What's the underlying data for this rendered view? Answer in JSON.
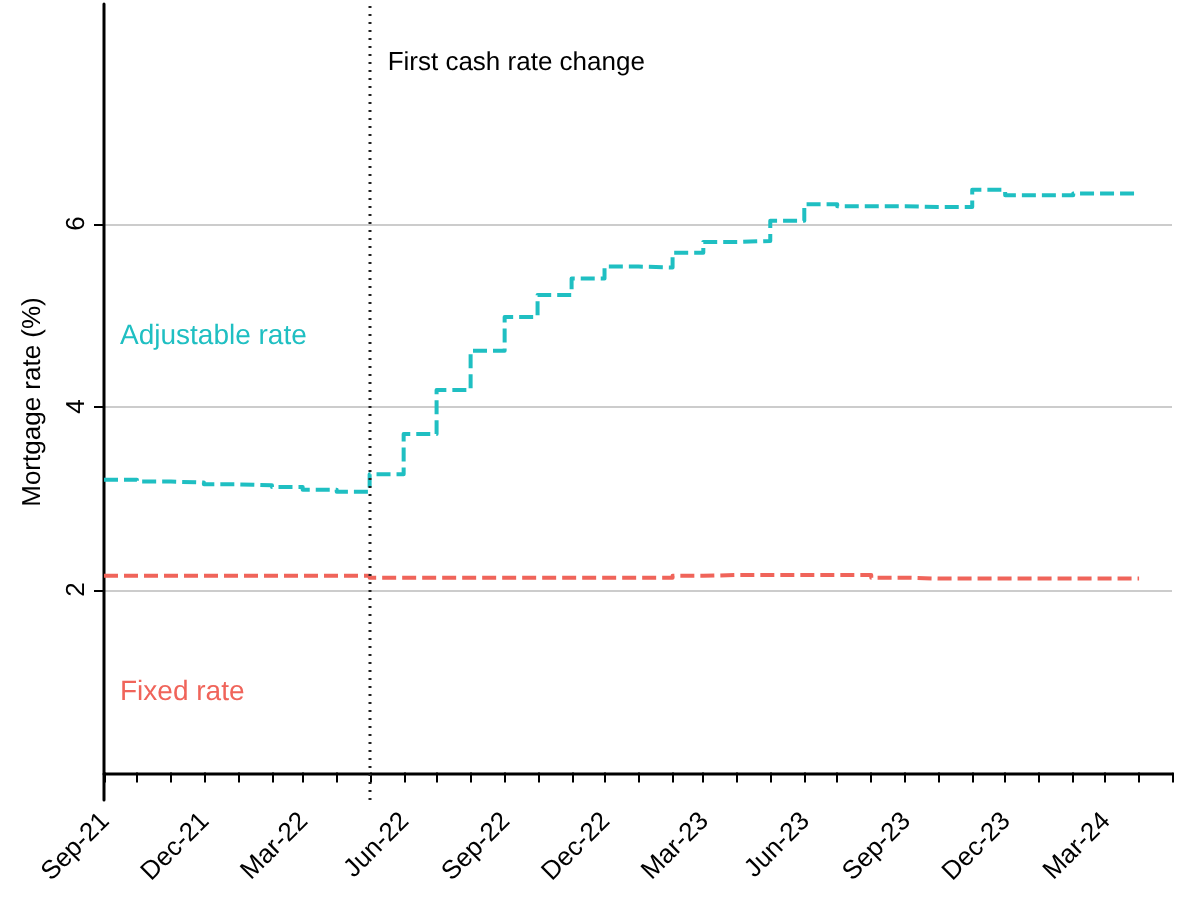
{
  "chart_data": {
    "type": "step",
    "ylabel": "Mortgage rate (%)",
    "x": [
      "2021-09",
      "2021-10",
      "2021-11",
      "2021-12",
      "2022-01",
      "2022-02",
      "2022-03",
      "2022-04",
      "2022-05",
      "2022-06",
      "2022-07",
      "2022-08",
      "2022-09",
      "2022-10",
      "2022-11",
      "2022-12",
      "2023-01",
      "2023-02",
      "2023-03",
      "2023-04",
      "2023-05",
      "2023-06",
      "2023-07",
      "2023-08",
      "2023-09",
      "2023-10",
      "2023-11",
      "2023-12",
      "2024-01",
      "2024-02",
      "2024-03",
      "2024-04"
    ],
    "series": [
      {
        "name": "Adjustable rate",
        "color": "#1fbfc2",
        "values": [
          3.2,
          3.18,
          3.17,
          3.15,
          3.14,
          3.12,
          3.09,
          3.07,
          3.26,
          3.7,
          4.18,
          4.61,
          4.98,
          5.22,
          5.4,
          5.53,
          5.52,
          5.68,
          5.8,
          5.81,
          6.03,
          6.21,
          6.19,
          6.19,
          6.18,
          6.18,
          6.37,
          6.31,
          6.31,
          6.33,
          6.33,
          6.33
        ]
      },
      {
        "name": "Fixed rate",
        "color": "#f0645a",
        "values": [
          2.15,
          2.15,
          2.15,
          2.15,
          2.15,
          2.15,
          2.15,
          2.15,
          2.13,
          2.13,
          2.13,
          2.13,
          2.13,
          2.13,
          2.13,
          2.13,
          2.13,
          2.15,
          2.16,
          2.16,
          2.16,
          2.16,
          2.16,
          2.13,
          2.12,
          2.12,
          2.12,
          2.12,
          2.12,
          2.12,
          2.12,
          2.12
        ]
      }
    ],
    "xlim": [
      "2021-09",
      "2024-05"
    ],
    "xticks": [
      {
        "value": "2021-09",
        "label": "Sep-21"
      },
      {
        "value": "2021-10",
        "label": null
      },
      {
        "value": "2021-11",
        "label": null
      },
      {
        "value": "2021-12",
        "label": "Dec-21"
      },
      {
        "value": "2022-01",
        "label": null
      },
      {
        "value": "2022-02",
        "label": null
      },
      {
        "value": "2022-03",
        "label": "Mar-22"
      },
      {
        "value": "2022-04",
        "label": null
      },
      {
        "value": "2022-05",
        "label": null
      },
      {
        "value": "2022-06",
        "label": "Jun-22"
      },
      {
        "value": "2022-07",
        "label": null
      },
      {
        "value": "2022-08",
        "label": null
      },
      {
        "value": "2022-09",
        "label": "Sep-22"
      },
      {
        "value": "2022-10",
        "label": null
      },
      {
        "value": "2022-11",
        "label": null
      },
      {
        "value": "2022-12",
        "label": "Dec-22"
      },
      {
        "value": "2023-01",
        "label": null
      },
      {
        "value": "2023-02",
        "label": null
      },
      {
        "value": "2023-03",
        "label": "Mar-23"
      },
      {
        "value": "2023-04",
        "label": null
      },
      {
        "value": "2023-05",
        "label": null
      },
      {
        "value": "2023-06",
        "label": "Jun-23"
      },
      {
        "value": "2023-07",
        "label": null
      },
      {
        "value": "2023-08",
        "label": null
      },
      {
        "value": "2023-09",
        "label": "Sep-23"
      },
      {
        "value": "2023-10",
        "label": null
      },
      {
        "value": "2023-11",
        "label": null
      },
      {
        "value": "2023-12",
        "label": "Dec-23"
      },
      {
        "value": "2024-01",
        "label": null
      },
      {
        "value": "2024-02",
        "label": null
      },
      {
        "value": "2024-03",
        "label": "Mar-24"
      },
      {
        "value": "2024-04",
        "label": null
      },
      {
        "value": "2024-05",
        "label": null
      }
    ],
    "ylim": [
      -0.3,
      8.4
    ],
    "yticks": [
      2,
      4,
      6
    ],
    "ref_lines": [
      {
        "axis": "x",
        "value": "2022-05",
        "label": "First cash rate change",
        "color": "#222222",
        "line_style": "dotted"
      }
    ],
    "grid": "y",
    "legend": false,
    "line_style": "dashed",
    "marker": "none"
  }
}
